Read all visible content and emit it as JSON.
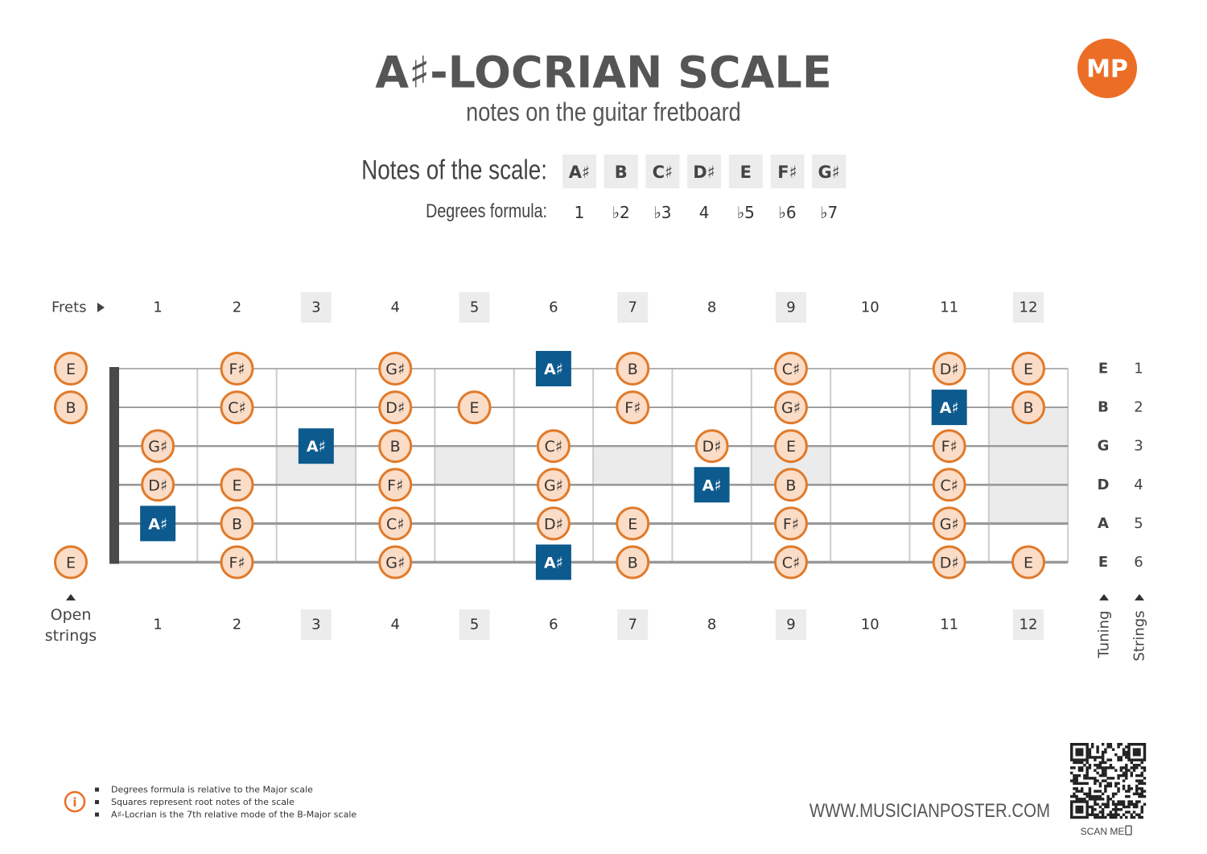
{
  "header": {
    "title": "A♯-LOCRIAN SCALE",
    "subtitle": "notes on the guitar fretboard",
    "logo": "MP"
  },
  "scale": {
    "notes_label": "Notes of the scale:",
    "notes": [
      "A♯",
      "B",
      "C♯",
      "D♯",
      "E",
      "F♯",
      "G♯"
    ],
    "degrees_label": "Degrees formula:",
    "degrees": [
      "1",
      "♭2",
      "♭3",
      "4",
      "♭5",
      "♭6",
      "♭7"
    ]
  },
  "fretboard": {
    "frets_label": "Frets",
    "frets": [
      "1",
      "2",
      "3",
      "4",
      "5",
      "6",
      "7",
      "8",
      "9",
      "10",
      "11",
      "12"
    ],
    "open_strings_label": "Open strings",
    "tuning_label": "Tuning",
    "strings_label": "Strings",
    "strings": [
      {
        "tuning": "E",
        "number": "1",
        "notes": [
          "E",
          null,
          "F♯",
          null,
          "G♯",
          null,
          "A♯",
          "B",
          null,
          "C♯",
          null,
          "D♯",
          "E"
        ]
      },
      {
        "tuning": "B",
        "number": "2",
        "notes": [
          "B",
          null,
          "C♯",
          null,
          "D♯",
          "E",
          null,
          "F♯",
          null,
          "G♯",
          null,
          "A♯",
          "B"
        ]
      },
      {
        "tuning": "G",
        "number": "3",
        "notes": [
          null,
          "G♯",
          null,
          "A♯",
          "B",
          null,
          "C♯",
          null,
          "D♯",
          "E",
          null,
          "F♯",
          null
        ]
      },
      {
        "tuning": "D",
        "number": "4",
        "notes": [
          null,
          "D♯",
          "E",
          null,
          "F♯",
          null,
          "G♯",
          null,
          "A♯",
          "B",
          null,
          "C♯",
          null
        ]
      },
      {
        "tuning": "A",
        "number": "5",
        "notes": [
          null,
          "A♯",
          "B",
          null,
          "C♯",
          null,
          "D♯",
          "E",
          null,
          "F♯",
          null,
          "G♯",
          null
        ]
      },
      {
        "tuning": "E",
        "number": "6",
        "notes": [
          "E",
          null,
          "F♯",
          null,
          "G♯",
          null,
          "A♯",
          "B",
          null,
          "C♯",
          null,
          "D♯",
          "E"
        ]
      }
    ]
  },
  "footer": {
    "notes": [
      "Degrees formula is relative to the Major scale",
      "Squares represent root notes of the scale",
      "A♯-Locrian is the 7th relative mode of the B-Major scale"
    ],
    "website": "WWW.MUSICIANPOSTER.COM",
    "scan_me": "SCAN ME"
  }
}
